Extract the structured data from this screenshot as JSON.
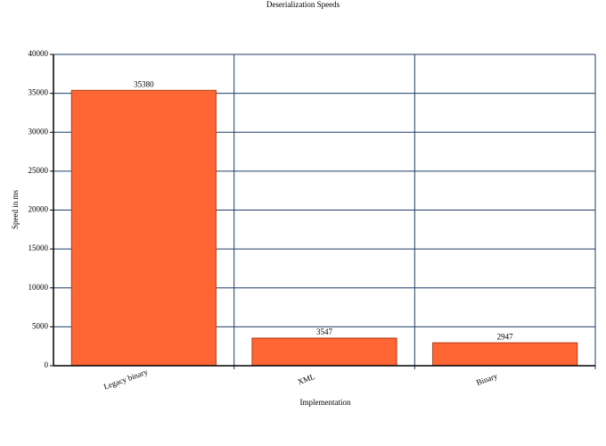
{
  "chart_data": {
    "type": "bar",
    "title": "Deserialization Speeds",
    "x_label": "Implementation",
    "y_label": "Speed in ms",
    "categories": [
      "Legacy binary",
      "XML",
      "Binary"
    ],
    "values": [
      35380,
      3547,
      2947
    ],
    "color": "#ff6633",
    "ylim": [
      0,
      40000
    ],
    "yticks": [
      0,
      5000,
      10000,
      15000,
      20000,
      25000,
      30000,
      35000,
      40000
    ],
    "grid": true
  }
}
